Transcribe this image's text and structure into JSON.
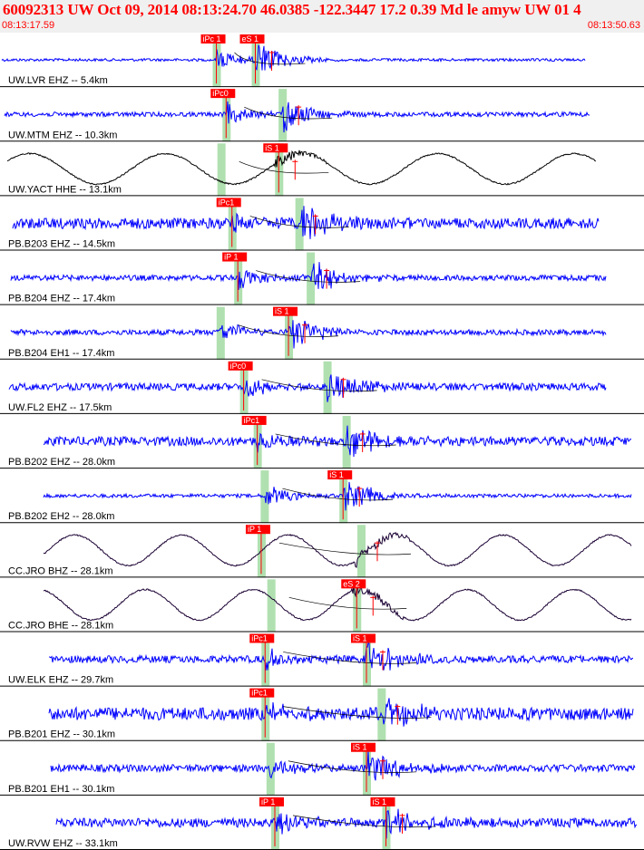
{
  "header": {
    "title": "60092313 UW Oct 09, 2014 08:13:24.70   46.0385 -122.3447 17.2 0.39 Md le amyw UW 01   4",
    "time_start": "08:13:17.59",
    "time_end": "08:13:50.63"
  },
  "colors": {
    "trace_blue": "#0000ff",
    "trace_black": "#000000",
    "trace_purple": "#1a0033",
    "pick_red": "#ff0000",
    "window_green": "#b0e0b0",
    "separator": "#000000"
  },
  "chart_data": {
    "type": "line",
    "x_range_seconds": [
      0,
      33.04
    ],
    "traces": [
      {
        "label": "UW.LVR EHZ -- 5.4km",
        "color": "#0000ff",
        "picks": [
          {
            "label": "iPc 1",
            "t": 11.1,
            "phase": "P"
          },
          {
            "label": "eS 1",
            "t": 13.1,
            "phase": "S"
          }
        ]
      },
      {
        "label": "UW.MTM EHZ -- 10.3km",
        "color": "#0000ff",
        "picks": [
          {
            "label": "iPc0",
            "t": 11.6,
            "phase": "P"
          }
        ]
      },
      {
        "label": "UW.YACT HHE -- 13.1km",
        "color": "#000000",
        "picks": [
          {
            "label": "iS 1",
            "t": 14.3,
            "phase": "S"
          }
        ]
      },
      {
        "label": "PB.B203 EHZ -- 14.5km",
        "color": "#0000ff",
        "picks": [
          {
            "label": "iPc1",
            "t": 11.9,
            "phase": "P"
          }
        ]
      },
      {
        "label": "PB.B204 EHZ -- 17.4km",
        "color": "#0000ff",
        "picks": [
          {
            "label": "iP 1",
            "t": 12.2,
            "phase": "P"
          }
        ]
      },
      {
        "label": "PB.B204 EH1 -- 17.4km",
        "color": "#0000ff",
        "picks": [
          {
            "label": "iS 1",
            "t": 14.8,
            "phase": "S"
          }
        ]
      },
      {
        "label": "UW.FL2 EHZ -- 17.5km",
        "color": "#0000ff",
        "picks": [
          {
            "label": "iPc0",
            "t": 12.5,
            "phase": "P"
          }
        ]
      },
      {
        "label": "PB.B202 EHZ -- 28.0km",
        "color": "#0000ff",
        "picks": [
          {
            "label": "iPc1",
            "t": 13.2,
            "phase": "P"
          }
        ]
      },
      {
        "label": "PB.B202 EH2 -- 28.0km",
        "color": "#0000ff",
        "picks": [
          {
            "label": "iS 1",
            "t": 17.6,
            "phase": "S"
          }
        ]
      },
      {
        "label": "CC.JRO BHZ -- 28.1km",
        "color": "#1a0033",
        "picks": [
          {
            "label": "iP 1",
            "t": 13.4,
            "phase": "P"
          }
        ]
      },
      {
        "label": "CC.JRO BHE -- 28.1km",
        "color": "#1a0033",
        "picks": [
          {
            "label": "eS 2",
            "t": 18.3,
            "phase": "S"
          }
        ]
      },
      {
        "label": "UW.ELK EHZ -- 29.7km",
        "color": "#0000ff",
        "picks": [
          {
            "label": "iPc1",
            "t": 13.6,
            "phase": "P"
          },
          {
            "label": "iS 1",
            "t": 18.8,
            "phase": "S"
          }
        ]
      },
      {
        "label": "PB.B201 EHZ -- 30.1km",
        "color": "#0000ff",
        "picks": [
          {
            "label": "iPc1",
            "t": 13.6,
            "phase": "P"
          }
        ]
      },
      {
        "label": "PB.B201 EH1 -- 30.1km",
        "color": "#0000ff",
        "picks": [
          {
            "label": "iS 1",
            "t": 18.8,
            "phase": "S"
          }
        ]
      },
      {
        "label": "UW.RVW EHZ -- 33.1km",
        "color": "#0000ff",
        "picks": [
          {
            "label": "iP 1",
            "t": 14.1,
            "phase": "P"
          },
          {
            "label": "iS 1",
            "t": 19.8,
            "phase": "S"
          }
        ]
      }
    ]
  }
}
